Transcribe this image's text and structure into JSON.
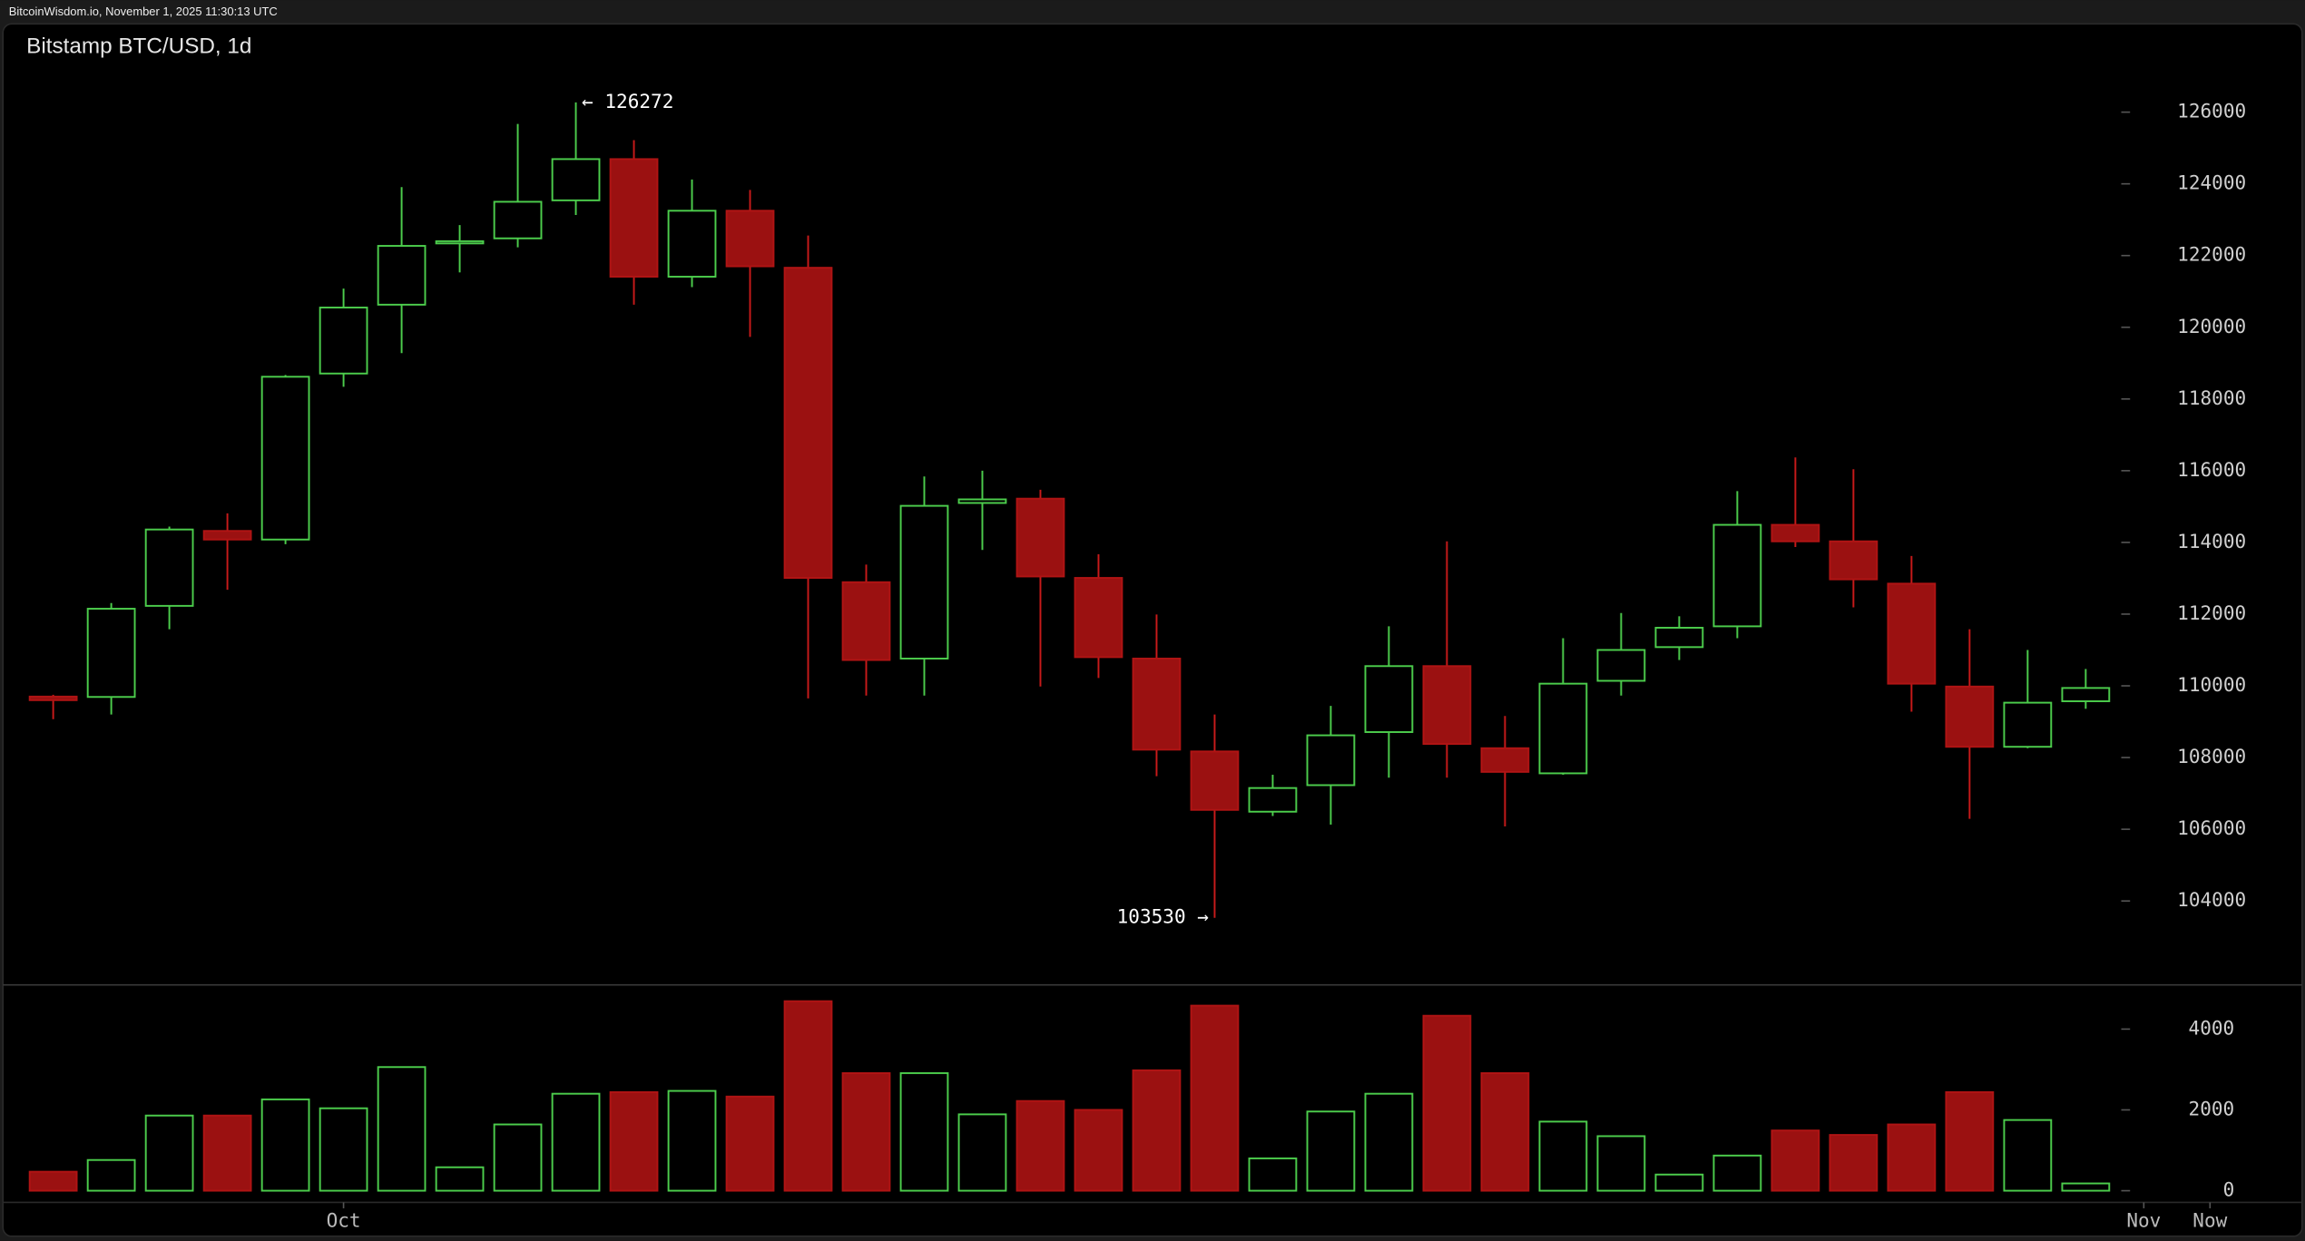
{
  "header": "BitcoinWisdom.io, November 1, 2025 11:30:13 UTC",
  "chart_data": {
    "type": "candlestick",
    "title": "Bitstamp BTC/USD, 1d",
    "up_color": "#4ccd4c",
    "down_color": "#9b1111",
    "open": [
      109700,
      109690,
      112230,
      114320,
      114080,
      118710,
      120630,
      122350,
      122480,
      123540,
      124690,
      121410,
      123250,
      121660,
      112890,
      110760,
      115100,
      115220,
      113010,
      110760,
      108170,
      106490,
      107230,
      108710,
      110550,
      108260,
      107560,
      110140,
      111080,
      111660,
      114490,
      114030,
      112850,
      109980,
      108300,
      109570
    ],
    "high": [
      109750,
      112310,
      114440,
      114810,
      118670,
      121080,
      123910,
      122850,
      125670,
      126272,
      125220,
      124120,
      123830,
      122560,
      113380,
      115840,
      116000,
      115470,
      113670,
      111990,
      109200,
      107520,
      109440,
      111660,
      114030,
      109160,
      111330,
      112030,
      111940,
      115430,
      116370,
      116040,
      113620,
      111580,
      111000,
      110470
    ],
    "low": [
      109070,
      109200,
      111580,
      112680,
      113950,
      118340,
      119280,
      121530,
      122230,
      123130,
      120630,
      121120,
      119730,
      109650,
      109730,
      109730,
      113790,
      109980,
      110220,
      107480,
      103530,
      106370,
      106130,
      107440,
      107440,
      106080,
      107520,
      109730,
      110720,
      111330,
      113870,
      112190,
      109280,
      106290,
      108260,
      109360
    ],
    "close": [
      109600,
      112150,
      114360,
      114080,
      118620,
      120550,
      122270,
      122400,
      123500,
      124690,
      121410,
      123250,
      121700,
      113010,
      110720,
      115020,
      115200,
      113050,
      110800,
      108220,
      106540,
      107150,
      108620,
      110550,
      108380,
      107600,
      110060,
      111000,
      111620,
      114490,
      114030,
      112970,
      110060,
      108300,
      109530,
      109940
    ],
    "volume": [
      470,
      760,
      1860,
      1860,
      2260,
      2040,
      3060,
      580,
      1640,
      2400,
      2440,
      2470,
      2330,
      4690,
      2910,
      2910,
      1890,
      2220,
      2000,
      2980,
      4580,
      800,
      1960,
      2400,
      4330,
      2910,
      1710,
      1350,
      400,
      870,
      1490,
      1380,
      1640,
      2440,
      1750,
      180
    ],
    "ylim": [
      101740,
      127150
    ],
    "yticks": [
      104000,
      106000,
      108000,
      110000,
      112000,
      114000,
      116000,
      118000,
      120000,
      122000,
      124000,
      126000
    ],
    "volume_ylim": [
      -290,
      5020
    ],
    "volume_yticks": [
      0,
      2000,
      4000
    ],
    "xlim": [
      -0.84,
      38.7
    ],
    "xticks": [
      {
        "value": 5,
        "label": "Oct"
      },
      {
        "value": 36,
        "label": "Nov"
      },
      {
        "value": 37.14,
        "label": "Now"
      }
    ],
    "annotations": [
      {
        "text": "← 126272",
        "value": 126272
      },
      {
        "text": "103530 →",
        "value": 103530
      }
    ]
  }
}
